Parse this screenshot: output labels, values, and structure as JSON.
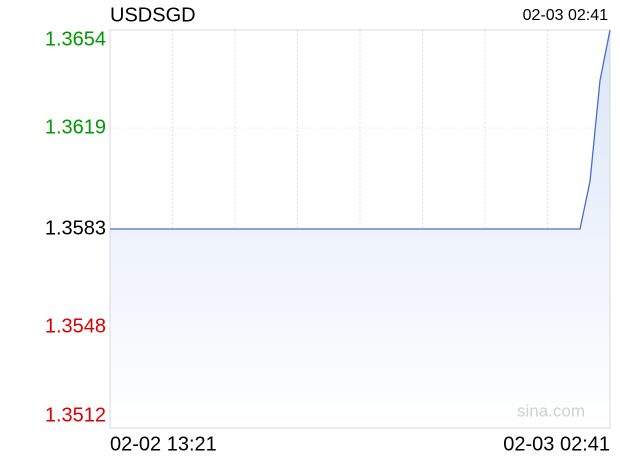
{
  "chart_data": {
    "type": "line",
    "title": "USDSGD",
    "updated": "02-03 02:41",
    "watermark": "sina.com",
    "categories": [
      "02-02 13:21",
      null,
      null,
      null,
      null,
      null,
      null,
      null,
      null,
      null,
      null,
      null,
      null,
      null,
      null,
      null,
      null,
      null,
      null,
      null,
      null,
      null,
      null,
      null,
      null,
      null,
      null,
      null,
      null,
      null,
      null,
      null,
      null,
      null,
      null,
      null,
      null,
      null,
      null,
      null,
      null,
      null,
      null,
      null,
      null,
      null,
      null,
      null,
      null,
      null,
      "02-03 02:41"
    ],
    "series": [
      {
        "name": "USDSGD",
        "color": "#4a6fc7",
        "values": [
          1.3583,
          1.3583,
          1.3583,
          1.3583,
          1.3583,
          1.3583,
          1.3583,
          1.3583,
          1.3583,
          1.3583,
          1.3583,
          1.3583,
          1.3583,
          1.3583,
          1.3583,
          1.3583,
          1.3583,
          1.3583,
          1.3583,
          1.3583,
          1.3583,
          1.3583,
          1.3583,
          1.3583,
          1.3583,
          1.3583,
          1.3583,
          1.3583,
          1.3583,
          1.3583,
          1.3583,
          1.3583,
          1.3583,
          1.3583,
          1.3583,
          1.3583,
          1.3583,
          1.3583,
          1.3583,
          1.3583,
          1.3583,
          1.3583,
          1.3583,
          1.3583,
          1.3583,
          1.3583,
          1.3583,
          1.3583,
          1.36,
          1.3636,
          1.3654
        ]
      }
    ],
    "ylim": [
      1.3512,
      1.3654
    ],
    "yticks": [
      1.3654,
      1.3619,
      1.3583,
      1.3548,
      1.3512
    ],
    "ytick_colors": [
      "#009900",
      "#009900",
      "#000000",
      "#dd0000",
      "#dd0000"
    ],
    "grid": true
  }
}
